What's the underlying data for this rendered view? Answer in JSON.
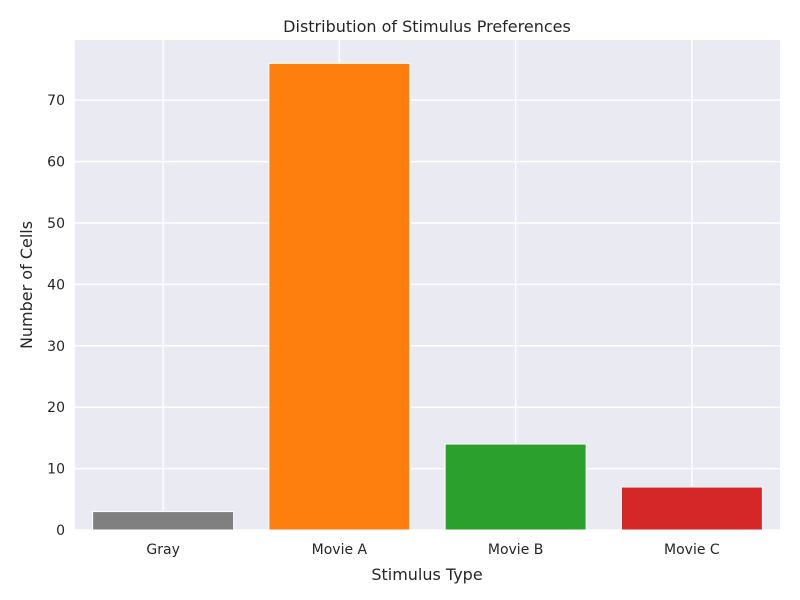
{
  "chart_data": {
    "type": "bar",
    "title": "Distribution of Stimulus Preferences",
    "xlabel": "Stimulus Type",
    "ylabel": "Number of Cells",
    "categories": [
      "Gray",
      "Movie A",
      "Movie B",
      "Movie C"
    ],
    "values": [
      3,
      76,
      14,
      7
    ],
    "colors": [
      "#808080",
      "#ff7f0e",
      "#2ca02c",
      "#d62728"
    ],
    "ylim": [
      0,
      79.8
    ],
    "yticks": [
      0,
      10,
      20,
      30,
      40,
      50,
      60,
      70
    ],
    "grid": true,
    "style": {
      "plot_background": "#eaeaf2",
      "grid_color": "#ffffff"
    }
  }
}
